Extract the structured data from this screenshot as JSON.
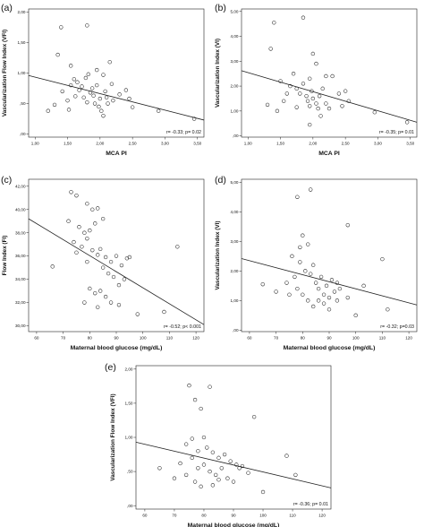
{
  "chart_data": [
    {
      "panel_label": "(a)",
      "type": "scatter",
      "xlabel": "MCA PI",
      "ylabel": "Vascularization Flow Index (VFI)",
      "xlim": [
        0.9,
        3.6
      ],
      "ylim": [
        -0.05,
        2.05
      ],
      "xticks": [
        1.0,
        1.5,
        2.0,
        2.5,
        3.0,
        3.5
      ],
      "xtick_labels": [
        "1,00",
        "1,50",
        "2,00",
        "2,50",
        "3,00",
        "3,50"
      ],
      "yticks": [
        0.0,
        0.5,
        1.0,
        1.5,
        2.0
      ],
      "ytick_labels": [
        ",00",
        ",50",
        "1,00",
        "1,50",
        "2,00"
      ],
      "annotation": "r= -0.33; p= 0.02",
      "fit_line": [
        [
          0.9,
          0.96
        ],
        [
          3.6,
          0.23
        ]
      ],
      "points": [
        [
          1.4,
          1.75
        ],
        [
          1.8,
          1.78
        ],
        [
          1.35,
          1.3
        ],
        [
          1.55,
          1.12
        ],
        [
          1.82,
          0.98
        ],
        [
          1.95,
          1.05
        ],
        [
          2.15,
          1.18
        ],
        [
          2.05,
          0.97
        ],
        [
          1.3,
          0.48
        ],
        [
          1.42,
          0.7
        ],
        [
          1.5,
          0.55
        ],
        [
          1.55,
          0.8
        ],
        [
          1.6,
          0.9
        ],
        [
          1.62,
          0.62
        ],
        [
          1.65,
          0.85
        ],
        [
          1.68,
          0.72
        ],
        [
          1.72,
          0.78
        ],
        [
          1.75,
          0.6
        ],
        [
          1.78,
          0.92
        ],
        [
          1.8,
          0.52
        ],
        [
          1.85,
          0.68
        ],
        [
          1.88,
          0.75
        ],
        [
          1.9,
          0.63
        ],
        [
          1.92,
          0.5
        ],
        [
          1.95,
          0.8
        ],
        [
          1.98,
          0.45
        ],
        [
          2.0,
          0.58
        ],
        [
          2.02,
          0.38
        ],
        [
          2.05,
          0.3
        ],
        [
          2.08,
          0.7
        ],
        [
          2.1,
          0.6
        ],
        [
          2.12,
          0.5
        ],
        [
          2.18,
          0.82
        ],
        [
          2.2,
          0.55
        ],
        [
          2.3,
          0.65
        ],
        [
          2.4,
          0.72
        ],
        [
          2.45,
          0.58
        ],
        [
          2.5,
          0.44
        ],
        [
          1.2,
          0.38
        ],
        [
          1.52,
          0.4
        ],
        [
          2.9,
          0.38
        ],
        [
          3.45,
          0.25
        ]
      ]
    },
    {
      "panel_label": "(b)",
      "type": "scatter",
      "xlabel": "MCA PI",
      "ylabel": "Vascularization Index (VI)",
      "xlim": [
        0.9,
        3.6
      ],
      "ylim": [
        -0.05,
        5.1
      ],
      "xticks": [
        1.0,
        1.5,
        2.0,
        2.5,
        3.0,
        3.5
      ],
      "xtick_labels": [
        "1,00",
        "1,50",
        "2,00",
        "2,50",
        "3,00",
        "3,50"
      ],
      "yticks": [
        0.0,
        1.0,
        2.0,
        3.0,
        4.0,
        5.0
      ],
      "ytick_labels": [
        ",00",
        "1,00",
        "2,00",
        "3,00",
        "4,00",
        "5,00"
      ],
      "annotation": "r= -0.35; p= 0.01",
      "fit_line": [
        [
          0.9,
          2.62
        ],
        [
          3.6,
          0.55
        ]
      ],
      "points": [
        [
          1.85,
          4.75
        ],
        [
          1.4,
          4.55
        ],
        [
          1.35,
          3.5
        ],
        [
          2.0,
          3.3
        ],
        [
          1.7,
          2.5
        ],
        [
          2.05,
          2.9
        ],
        [
          1.95,
          2.3
        ],
        [
          2.2,
          2.4
        ],
        [
          1.5,
          2.2
        ],
        [
          1.65,
          2.0
        ],
        [
          1.75,
          1.9
        ],
        [
          1.8,
          1.7
        ],
        [
          1.85,
          2.1
        ],
        [
          1.9,
          1.6
        ],
        [
          1.92,
          1.4
        ],
        [
          1.95,
          1.2
        ],
        [
          1.98,
          1.8
        ],
        [
          2.0,
          1.5
        ],
        [
          2.05,
          1.3
        ],
        [
          2.08,
          1.1
        ],
        [
          2.1,
          1.6
        ],
        [
          2.12,
          0.8
        ],
        [
          2.15,
          1.9
        ],
        [
          2.2,
          1.3
        ],
        [
          2.25,
          1.1
        ],
        [
          2.3,
          2.4
        ],
        [
          2.4,
          1.7
        ],
        [
          2.45,
          1.2
        ],
        [
          2.5,
          1.8
        ],
        [
          1.3,
          1.25
        ],
        [
          1.45,
          1.0
        ],
        [
          1.55,
          1.4
        ],
        [
          1.6,
          1.7
        ],
        [
          1.75,
          1.15
        ],
        [
          1.95,
          0.45
        ],
        [
          2.55,
          1.4
        ],
        [
          2.95,
          0.95
        ],
        [
          3.45,
          0.55
        ]
      ]
    },
    {
      "panel_label": "(c)",
      "type": "scatter",
      "xlabel": "Maternal blood glucose (mg/dL)",
      "ylabel": "Flow Index (FI)",
      "xlim": [
        57,
        123
      ],
      "ylim": [
        29.5,
        42.6
      ],
      "xticks": [
        60,
        70,
        80,
        90,
        100,
        110,
        120
      ],
      "xtick_labels": [
        "60",
        "70",
        "80",
        "90",
        "100",
        "110",
        "120"
      ],
      "yticks": [
        30,
        32,
        34,
        36,
        38,
        40,
        42
      ],
      "ytick_labels": [
        "30,00",
        "32,00",
        "34,00",
        "36,00",
        "38,00",
        "40,00",
        "42,00"
      ],
      "annotation": "r= -0.52; p< 0.001",
      "fit_line": [
        [
          57,
          39.2
        ],
        [
          123,
          30.1
        ]
      ],
      "points": [
        [
          73,
          41.5
        ],
        [
          75,
          41.2
        ],
        [
          79,
          40.5
        ],
        [
          81,
          40.0
        ],
        [
          83,
          40.1
        ],
        [
          72,
          39.0
        ],
        [
          76,
          38.5
        ],
        [
          78,
          38.0
        ],
        [
          80,
          38.2
        ],
        [
          82,
          38.8
        ],
        [
          85,
          39.2
        ],
        [
          74,
          37.2
        ],
        [
          77,
          36.8
        ],
        [
          79,
          37.5
        ],
        [
          81,
          36.5
        ],
        [
          83,
          36.1
        ],
        [
          86,
          35.9
        ],
        [
          88,
          35.5
        ],
        [
          90,
          36.0
        ],
        [
          92,
          35.2
        ],
        [
          94,
          35.8
        ],
        [
          95,
          35.9
        ],
        [
          85,
          35.0
        ],
        [
          87,
          34.5
        ],
        [
          89,
          34.2
        ],
        [
          91,
          33.5
        ],
        [
          93,
          34.0
        ],
        [
          84,
          33.0
        ],
        [
          86,
          32.5
        ],
        [
          88,
          32.0
        ],
        [
          80,
          33.2
        ],
        [
          82,
          32.8
        ],
        [
          83,
          31.6
        ],
        [
          91,
          31.8
        ],
        [
          78,
          32.0
        ],
        [
          98,
          31.0
        ],
        [
          108,
          31.2
        ],
        [
          113,
          36.8
        ],
        [
          66,
          35.1
        ],
        [
          75,
          36.3
        ],
        [
          84,
          36.6
        ],
        [
          79,
          35.5
        ]
      ]
    },
    {
      "panel_label": "(d)",
      "type": "scatter",
      "xlabel": "Maternal blood glucose (mg/dL)",
      "ylabel": "Vascularization Index (VI)",
      "xlim": [
        57,
        123
      ],
      "ylim": [
        -0.05,
        5.1
      ],
      "xticks": [
        60,
        70,
        80,
        90,
        100,
        110,
        120
      ],
      "xtick_labels": [
        "60",
        "70",
        "80",
        "90",
        "100",
        "110",
        "120"
      ],
      "yticks": [
        0.0,
        1.0,
        2.0,
        3.0,
        4.0,
        5.0
      ],
      "ytick_labels": [
        ",00",
        "1,00",
        "2,00",
        "3,00",
        "4,00",
        "5,00"
      ],
      "annotation": "r= -0.32; p=0.03",
      "fit_line": [
        [
          57,
          2.42
        ],
        [
          123,
          0.85
        ]
      ],
      "points": [
        [
          83,
          4.75
        ],
        [
          78,
          4.5
        ],
        [
          97,
          3.55
        ],
        [
          80,
          3.2
        ],
        [
          82,
          2.9
        ],
        [
          76,
          2.5
        ],
        [
          79,
          2.3
        ],
        [
          81,
          2.0
        ],
        [
          83,
          1.9
        ],
        [
          84,
          2.2
        ],
        [
          85,
          1.6
        ],
        [
          86,
          1.4
        ],
        [
          87,
          1.8
        ],
        [
          88,
          1.2
        ],
        [
          89,
          1.5
        ],
        [
          90,
          1.1
        ],
        [
          91,
          1.7
        ],
        [
          92,
          1.3
        ],
        [
          93,
          1.0
        ],
        [
          94,
          1.4
        ],
        [
          77,
          1.8
        ],
        [
          78,
          1.4
        ],
        [
          80,
          1.2
        ],
        [
          82,
          1.0
        ],
        [
          84,
          0.8
        ],
        [
          86,
          1.0
        ],
        [
          88,
          0.9
        ],
        [
          90,
          0.7
        ],
        [
          75,
          1.2
        ],
        [
          70,
          1.3
        ],
        [
          74,
          1.6
        ],
        [
          79,
          2.8
        ],
        [
          93,
          1.6
        ],
        [
          97,
          1.1
        ],
        [
          100,
          0.5
        ],
        [
          103,
          1.5
        ],
        [
          110,
          2.4
        ],
        [
          112,
          0.7
        ],
        [
          65,
          1.55
        ]
      ]
    },
    {
      "panel_label": "(e)",
      "type": "scatter",
      "xlabel": "Maternal blood glucose (mg/dL)",
      "ylabel": "Vascularization Flow Index (VFI)",
      "xlim": [
        57,
        123
      ],
      "ylim": [
        -0.05,
        2.05
      ],
      "xticks": [
        60,
        70,
        80,
        90,
        100,
        110,
        120
      ],
      "xtick_labels": [
        "60",
        "70",
        "80",
        "90",
        "100",
        "110",
        "120"
      ],
      "yticks": [
        0.0,
        0.5,
        1.0,
        1.5,
        2.0
      ],
      "ytick_labels": [
        ",00",
        ",50",
        "1,00",
        "1,50",
        "2,00"
      ],
      "annotation": "r= -0.36; p= 0.01",
      "fit_line": [
        [
          57,
          0.93
        ],
        [
          123,
          0.26
        ]
      ],
      "points": [
        [
          75,
          1.76
        ],
        [
          82,
          1.74
        ],
        [
          77,
          1.55
        ],
        [
          79,
          1.42
        ],
        [
          97,
          1.3
        ],
        [
          80,
          1.0
        ],
        [
          76,
          0.98
        ],
        [
          74,
          0.9
        ],
        [
          78,
          0.8
        ],
        [
          81,
          0.85
        ],
        [
          83,
          0.78
        ],
        [
          85,
          0.7
        ],
        [
          87,
          0.75
        ],
        [
          89,
          0.65
        ],
        [
          91,
          0.6
        ],
        [
          93,
          0.58
        ],
        [
          72,
          0.62
        ],
        [
          76,
          0.7
        ],
        [
          78,
          0.55
        ],
        [
          80,
          0.6
        ],
        [
          82,
          0.5
        ],
        [
          84,
          0.45
        ],
        [
          86,
          0.55
        ],
        [
          88,
          0.4
        ],
        [
          90,
          0.35
        ],
        [
          74,
          0.45
        ],
        [
          77,
          0.35
        ],
        [
          79,
          0.28
        ],
        [
          83,
          0.3
        ],
        [
          85,
          0.38
        ],
        [
          92,
          0.55
        ],
        [
          95,
          0.48
        ],
        [
          100,
          0.2
        ],
        [
          108,
          0.73
        ],
        [
          111,
          0.45
        ],
        [
          65,
          0.55
        ],
        [
          70,
          0.4
        ]
      ]
    }
  ]
}
